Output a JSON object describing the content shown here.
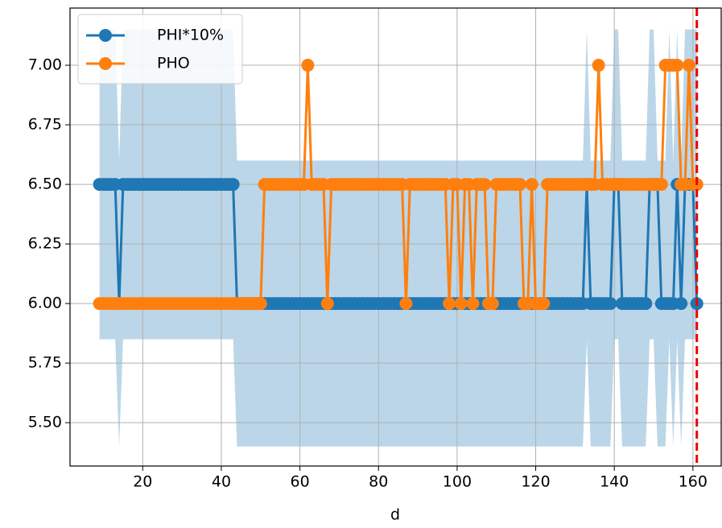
{
  "chart_data": {
    "type": "line",
    "xlabel": "d",
    "xlim": [
      1.5,
      167.2
    ],
    "ylim": [
      5.318,
      7.24
    ],
    "xticks": [
      20,
      40,
      60,
      80,
      100,
      120,
      140,
      160
    ],
    "yticks": [
      {
        "value": 5.5,
        "label": "5.50"
      },
      {
        "value": 5.75,
        "label": "5.75"
      },
      {
        "value": 6,
        "label": "6.00"
      },
      {
        "value": 6.25,
        "label": "6.25"
      },
      {
        "value": 6.5,
        "label": "6.50"
      },
      {
        "value": 6.75,
        "label": "6.75"
      },
      {
        "value": 7,
        "label": "7.00"
      }
    ],
    "grid": true,
    "legend": "upper left",
    "vline": 161,
    "vline_color": "#ee0000",
    "x": [
      9,
      10,
      11,
      12,
      13,
      14,
      15,
      16,
      17,
      18,
      19,
      20,
      21,
      22,
      23,
      24,
      25,
      26,
      27,
      28,
      29,
      30,
      31,
      32,
      33,
      34,
      35,
      36,
      37,
      38,
      39,
      40,
      41,
      42,
      43,
      44,
      45,
      46,
      47,
      48,
      49,
      50,
      51,
      52,
      53,
      54,
      55,
      56,
      57,
      58,
      59,
      60,
      61,
      62,
      63,
      64,
      65,
      66,
      67,
      68,
      69,
      70,
      71,
      72,
      73,
      74,
      75,
      76,
      77,
      78,
      79,
      80,
      81,
      82,
      83,
      84,
      85,
      86,
      87,
      88,
      89,
      90,
      91,
      92,
      93,
      94,
      95,
      96,
      97,
      98,
      99,
      100,
      101,
      102,
      103,
      104,
      105,
      106,
      107,
      108,
      109,
      110,
      111,
      112,
      113,
      114,
      115,
      116,
      117,
      118,
      119,
      120,
      121,
      122,
      123,
      124,
      125,
      126,
      127,
      128,
      129,
      130,
      131,
      132,
      133,
      134,
      135,
      136,
      137,
      138,
      139,
      140,
      141,
      142,
      143,
      144,
      145,
      146,
      147,
      148,
      149,
      150,
      151,
      152,
      153,
      154,
      155,
      156,
      157,
      158,
      159,
      160,
      161
    ],
    "series": [
      {
        "name": "PHI*10%",
        "color": "#1f77b4",
        "values": [
          6.5,
          6.5,
          6.5,
          6.5,
          6.5,
          6,
          6.5,
          6.5,
          6.5,
          6.5,
          6.5,
          6.5,
          6.5,
          6.5,
          6.5,
          6.5,
          6.5,
          6.5,
          6.5,
          6.5,
          6.5,
          6.5,
          6.5,
          6.5,
          6.5,
          6.5,
          6.5,
          6.5,
          6.5,
          6.5,
          6.5,
          6.5,
          6.5,
          6.5,
          6.5,
          6,
          6,
          6,
          6,
          6,
          6,
          6,
          6,
          6,
          6,
          6,
          6,
          6,
          6,
          6,
          6,
          6,
          6,
          6,
          6,
          6,
          6,
          6,
          6,
          6,
          6,
          6,
          6,
          6,
          6,
          6,
          6,
          6,
          6,
          6,
          6,
          6,
          6,
          6,
          6,
          6,
          6,
          6,
          6,
          6,
          6,
          6,
          6,
          6,
          6,
          6,
          6,
          6,
          6,
          6,
          6,
          6,
          6,
          6,
          6,
          6,
          6,
          6,
          6,
          6,
          6,
          6,
          6,
          6,
          6,
          6,
          6,
          6,
          6,
          6,
          6,
          6,
          6,
          6,
          6,
          6,
          6,
          6,
          6,
          6,
          6,
          6,
          6,
          6,
          6.5,
          6,
          6,
          6,
          6,
          6,
          6,
          6.5,
          6.5,
          6,
          6,
          6,
          6,
          6,
          6,
          6,
          6.5,
          6.5,
          6.5,
          6,
          6,
          6,
          6,
          6.5,
          6,
          6.5,
          6.5,
          6.5,
          6
        ]
      },
      {
        "name": "PHO",
        "color": "#ff7f0e",
        "values": [
          6,
          6,
          6,
          6,
          6,
          6,
          6,
          6,
          6,
          6,
          6,
          6,
          6,
          6,
          6,
          6,
          6,
          6,
          6,
          6,
          6,
          6,
          6,
          6,
          6,
          6,
          6,
          6,
          6,
          6,
          6,
          6,
          6,
          6,
          6,
          6,
          6,
          6,
          6,
          6,
          6,
          6,
          6.5,
          6.5,
          6.5,
          6.5,
          6.5,
          6.5,
          6.5,
          6.5,
          6.5,
          6.5,
          6.5,
          7,
          6.5,
          6.5,
          6.5,
          6.5,
          6,
          6.5,
          6.5,
          6.5,
          6.5,
          6.5,
          6.5,
          6.5,
          6.5,
          6.5,
          6.5,
          6.5,
          6.5,
          6.5,
          6.5,
          6.5,
          6.5,
          6.5,
          6.5,
          6.5,
          6,
          6.5,
          6.5,
          6.5,
          6.5,
          6.5,
          6.5,
          6.5,
          6.5,
          6.5,
          6.5,
          6,
          6.5,
          6.5,
          6,
          6.5,
          6.5,
          6,
          6.5,
          6.5,
          6.5,
          6,
          6,
          6.5,
          6.5,
          6.5,
          6.5,
          6.5,
          6.5,
          6.5,
          6,
          6,
          6.5,
          6,
          6,
          6,
          6.5,
          6.5,
          6.5,
          6.5,
          6.5,
          6.5,
          6.5,
          6.5,
          6.5,
          6.5,
          6.5,
          6.5,
          6.5,
          7,
          6.5,
          6.5,
          6.5,
          6.5,
          6.5,
          6.5,
          6.5,
          6.5,
          6.5,
          6.5,
          6.5,
          6.5,
          6.5,
          6.5,
          6.5,
          6.5,
          7,
          7,
          7,
          7,
          6.5,
          6.5,
          7,
          6.5,
          6.5
        ]
      }
    ],
    "band": {
      "color": "#1f77b4",
      "x": [
        9,
        13,
        14,
        15,
        43,
        44,
        132,
        133,
        134,
        139,
        140,
        141,
        142,
        148,
        149,
        150,
        151,
        153,
        154,
        155,
        156,
        157,
        158,
        161
      ],
      "lower": [
        5.85,
        5.85,
        5.4,
        5.85,
        5.85,
        5.4,
        5.4,
        5.85,
        5.4,
        5.4,
        5.85,
        5.85,
        5.4,
        5.4,
        5.85,
        5.85,
        5.4,
        5.4,
        5.85,
        5.4,
        5.85,
        5.4,
        5.85,
        5.85
      ],
      "upper": [
        7.15,
        7.15,
        6.6,
        7.15,
        7.15,
        6.6,
        6.6,
        7.15,
        6.6,
        6.6,
        7.15,
        7.15,
        6.6,
        6.6,
        7.15,
        7.15,
        6.6,
        6.6,
        7.15,
        6.6,
        7.15,
        6.6,
        7.15,
        7.15
      ]
    }
  }
}
